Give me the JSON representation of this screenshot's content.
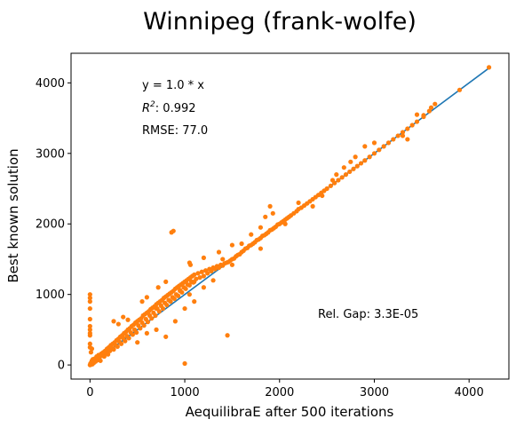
{
  "chart_data": {
    "type": "scatter",
    "title": "Winnipeg (frank-wolfe)",
    "xlabel": "AequilibraE after 500 iterations",
    "ylabel": "Best known solution",
    "xlim": [
      -200,
      4420
    ],
    "ylim": [
      -200,
      4420
    ],
    "xticks": [
      0,
      1000,
      2000,
      3000,
      4000
    ],
    "yticks": [
      0,
      1000,
      2000,
      3000,
      4000
    ],
    "grid": false,
    "annotations": {
      "equation": "y = 1.0 * x",
      "r2_label": "R",
      "r2_sup": "2",
      "r2_value": ":  0.992",
      "rmse": "RMSE: 77.0",
      "gap": "Rel. Gap: 3.3E-05"
    },
    "series": [
      {
        "kind": "line",
        "color": "#1f77b4",
        "x": [
          0,
          4210
        ],
        "y": [
          0,
          4210
        ]
      },
      {
        "kind": "points",
        "color": "#ff7f0e",
        "points": [
          [
            0,
            0
          ],
          [
            5,
            20
          ],
          [
            10,
            5
          ],
          [
            15,
            40
          ],
          [
            20,
            60
          ],
          [
            25,
            10
          ],
          [
            30,
            80
          ],
          [
            40,
            30
          ],
          [
            50,
            90
          ],
          [
            60,
            50
          ],
          [
            70,
            120
          ],
          [
            80,
            70
          ],
          [
            90,
            140
          ],
          [
            100,
            110
          ],
          [
            110,
            60
          ],
          [
            120,
            160
          ],
          [
            130,
            130
          ],
          [
            140,
            180
          ],
          [
            150,
            120
          ],
          [
            160,
            200
          ],
          [
            170,
            170
          ],
          [
            180,
            230
          ],
          [
            190,
            150
          ],
          [
            200,
            250
          ],
          [
            210,
            200
          ],
          [
            220,
            280
          ],
          [
            230,
            240
          ],
          [
            240,
            300
          ],
          [
            250,
            220
          ],
          [
            260,
            320
          ],
          [
            270,
            280
          ],
          [
            280,
            350
          ],
          [
            290,
            260
          ],
          [
            300,
            370
          ],
          [
            310,
            330
          ],
          [
            320,
            400
          ],
          [
            330,
            300
          ],
          [
            340,
            420
          ],
          [
            350,
            380
          ],
          [
            360,
            450
          ],
          [
            370,
            340
          ],
          [
            380,
            470
          ],
          [
            390,
            410
          ],
          [
            400,
            500
          ],
          [
            410,
            380
          ],
          [
            420,
            520
          ],
          [
            430,
            460
          ],
          [
            440,
            550
          ],
          [
            450,
            430
          ],
          [
            460,
            570
          ],
          [
            470,
            500
          ],
          [
            480,
            600
          ],
          [
            490,
            460
          ],
          [
            500,
            620
          ],
          [
            510,
            560
          ],
          [
            520,
            640
          ],
          [
            530,
            520
          ],
          [
            540,
            660
          ],
          [
            550,
            600
          ],
          [
            560,
            700
          ],
          [
            570,
            560
          ],
          [
            580,
            720
          ],
          [
            590,
            650
          ],
          [
            600,
            740
          ],
          [
            610,
            610
          ],
          [
            620,
            760
          ],
          [
            630,
            700
          ],
          [
            640,
            790
          ],
          [
            650,
            660
          ],
          [
            660,
            810
          ],
          [
            670,
            740
          ],
          [
            680,
            830
          ],
          [
            690,
            700
          ],
          [
            700,
            860
          ],
          [
            710,
            800
          ],
          [
            720,
            880
          ],
          [
            730,
            760
          ],
          [
            740,
            900
          ],
          [
            750,
            840
          ],
          [
            760,
            920
          ],
          [
            770,
            800
          ],
          [
            780,
            950
          ],
          [
            790,
            880
          ],
          [
            800,
            970
          ],
          [
            810,
            850
          ],
          [
            820,
            990
          ],
          [
            830,
            920
          ],
          [
            840,
            1010
          ],
          [
            850,
            900
          ],
          [
            860,
            1030
          ],
          [
            870,
            960
          ],
          [
            880,
            1050
          ],
          [
            890,
            940
          ],
          [
            900,
            1080
          ],
          [
            910,
            1000
          ],
          [
            920,
            1100
          ],
          [
            930,
            980
          ],
          [
            940,
            1120
          ],
          [
            950,
            1060
          ],
          [
            960,
            1140
          ],
          [
            970,
            1030
          ],
          [
            980,
            1160
          ],
          [
            990,
            1100
          ],
          [
            1000,
            1180
          ],
          [
            1010,
            1080
          ],
          [
            1020,
            1200
          ],
          [
            1030,
            1140
          ],
          [
            1040,
            1220
          ],
          [
            1050,
            1130
          ],
          [
            1060,
            1240
          ],
          [
            1070,
            1180
          ],
          [
            1080,
            1260
          ],
          [
            1090,
            1170
          ],
          [
            1100,
            1280
          ],
          [
            1120,
            1220
          ],
          [
            1140,
            1300
          ],
          [
            1160,
            1240
          ],
          [
            1180,
            1320
          ],
          [
            1200,
            1260
          ],
          [
            1220,
            1340
          ],
          [
            1240,
            1300
          ],
          [
            1260,
            1360
          ],
          [
            1280,
            1330
          ],
          [
            1300,
            1380
          ],
          [
            1320,
            1360
          ],
          [
            1340,
            1400
          ],
          [
            1360,
            1380
          ],
          [
            1380,
            1420
          ],
          [
            1400,
            1410
          ],
          [
            1420,
            1440
          ],
          [
            1440,
            1450
          ],
          [
            1460,
            1460
          ],
          [
            1480,
            1480
          ],
          [
            1500,
            1500
          ],
          [
            1520,
            1510
          ],
          [
            1540,
            1540
          ],
          [
            1560,
            1560
          ],
          [
            1580,
            1570
          ],
          [
            1600,
            1600
          ],
          [
            1620,
            1620
          ],
          [
            1640,
            1650
          ],
          [
            1660,
            1660
          ],
          [
            1680,
            1690
          ],
          [
            1700,
            1700
          ],
          [
            1720,
            1720
          ],
          [
            1740,
            1740
          ],
          [
            1760,
            1770
          ],
          [
            1780,
            1780
          ],
          [
            1800,
            1800
          ],
          [
            1820,
            1830
          ],
          [
            1840,
            1840
          ],
          [
            1860,
            1860
          ],
          [
            1880,
            1880
          ],
          [
            1900,
            1910
          ],
          [
            1920,
            1920
          ],
          [
            1940,
            1940
          ],
          [
            1960,
            1960
          ],
          [
            1980,
            1990
          ],
          [
            2000,
            2000
          ],
          [
            2020,
            2020
          ],
          [
            2040,
            2040
          ],
          [
            2060,
            2060
          ],
          [
            2080,
            2080
          ],
          [
            2100,
            2100
          ],
          [
            2120,
            2120
          ],
          [
            2150,
            2150
          ],
          [
            2180,
            2180
          ],
          [
            2200,
            2210
          ],
          [
            2230,
            2230
          ],
          [
            2260,
            2260
          ],
          [
            2290,
            2290
          ],
          [
            2320,
            2320
          ],
          [
            2350,
            2350
          ],
          [
            2380,
            2380
          ],
          [
            2410,
            2410
          ],
          [
            2440,
            2440
          ],
          [
            2470,
            2470
          ],
          [
            2500,
            2500
          ],
          [
            2540,
            2540
          ],
          [
            2580,
            2580
          ],
          [
            2620,
            2620
          ],
          [
            2660,
            2660
          ],
          [
            2700,
            2700
          ],
          [
            2740,
            2740
          ],
          [
            2780,
            2780
          ],
          [
            2820,
            2820
          ],
          [
            2860,
            2860
          ],
          [
            2900,
            2900
          ],
          [
            2950,
            2950
          ],
          [
            3000,
            3000
          ],
          [
            3050,
            3050
          ],
          [
            3100,
            3100
          ],
          [
            3150,
            3150
          ],
          [
            3200,
            3200
          ],
          [
            3250,
            3250
          ],
          [
            3300,
            3300
          ],
          [
            3350,
            3350
          ],
          [
            3400,
            3400
          ],
          [
            3450,
            3450
          ],
          [
            3520,
            3520
          ],
          [
            3600,
            3650
          ],
          [
            3640,
            3700
          ],
          [
            3900,
            3900
          ],
          [
            4210,
            4220
          ],
          [
            0,
            1000
          ],
          [
            0,
            950
          ],
          [
            0,
            900
          ],
          [
            0,
            800
          ],
          [
            0,
            650
          ],
          [
            0,
            550
          ],
          [
            0,
            500
          ],
          [
            0,
            450
          ],
          [
            0,
            420
          ],
          [
            0,
            300
          ],
          [
            0,
            250
          ],
          [
            10,
            180
          ],
          [
            20,
            230
          ],
          [
            250,
            620
          ],
          [
            300,
            580
          ],
          [
            350,
            680
          ],
          [
            400,
            640
          ],
          [
            550,
            900
          ],
          [
            600,
            960
          ],
          [
            700,
            800
          ],
          [
            720,
            1100
          ],
          [
            600,
            450
          ],
          [
            500,
            320
          ],
          [
            800,
            400
          ],
          [
            700,
            500
          ],
          [
            900,
            620
          ],
          [
            1000,
            800
          ],
          [
            1100,
            900
          ],
          [
            800,
            1180
          ],
          [
            1000,
            20
          ],
          [
            1450,
            420
          ],
          [
            860,
            1880
          ],
          [
            880,
            1900
          ],
          [
            1050,
            1450
          ],
          [
            1060,
            1420
          ],
          [
            1200,
            1520
          ],
          [
            1360,
            1600
          ],
          [
            1500,
            1700
          ],
          [
            1800,
            1950
          ],
          [
            1850,
            2100
          ],
          [
            1900,
            2250
          ],
          [
            1930,
            2150
          ],
          [
            2060,
            2000
          ],
          [
            2200,
            2300
          ],
          [
            2350,
            2250
          ],
          [
            2450,
            2400
          ],
          [
            2560,
            2620
          ],
          [
            2600,
            2700
          ],
          [
            2680,
            2800
          ],
          [
            2750,
            2880
          ],
          [
            2800,
            2950
          ],
          [
            2900,
            3100
          ],
          [
            3000,
            3150
          ],
          [
            3300,
            3250
          ],
          [
            3350,
            3200
          ],
          [
            3450,
            3550
          ],
          [
            3520,
            3540
          ],
          [
            3580,
            3600
          ],
          [
            1800,
            1650
          ],
          [
            1700,
            1850
          ],
          [
            1600,
            1720
          ],
          [
            1500,
            1420
          ],
          [
            1400,
            1500
          ],
          [
            1300,
            1200
          ],
          [
            1200,
            1100
          ],
          [
            1100,
            1180
          ],
          [
            1050,
            1000
          ],
          [
            950,
            1050
          ]
        ]
      }
    ]
  }
}
